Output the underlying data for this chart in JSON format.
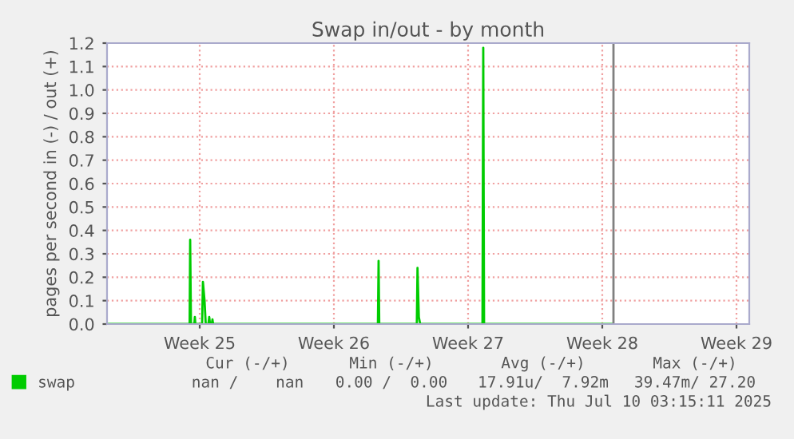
{
  "chart_data": {
    "type": "line",
    "title": "Swap in/out - by month",
    "ylabel": "pages per second in (-) / out (+)",
    "xlim": [
      "2025-06-14T16:00",
      "2025-07-18T04:00"
    ],
    "xticks": [
      {
        "value": "2025-06-19T12:00",
        "label": "Week 25"
      },
      {
        "value": "2025-06-26T12:00",
        "label": "Week 26"
      },
      {
        "value": "2025-07-03T12:00",
        "label": "Week 27"
      },
      {
        "value": "2025-07-10T12:00",
        "label": "Week 28"
      },
      {
        "value": "2025-07-17T12:00",
        "label": "Week 29"
      }
    ],
    "ylim": [
      0,
      1.2
    ],
    "yticks": [
      {
        "value": 0,
        "label": "0.0"
      },
      0.1,
      0.2,
      0.3,
      0.4,
      0.5,
      0.6,
      0.7,
      0.8,
      0.9,
      {
        "value": 1,
        "label": "1.0"
      },
      1.1,
      1.2
    ],
    "grid": true,
    "legend": "bottom",
    "marker": "none",
    "line_style": "solid",
    "series": [
      {
        "name": "swap",
        "color": "#00cc00",
        "x": [
          "2025-06-14T16:00",
          "2025-06-18T23:24",
          "2025-06-19T00:04",
          "2025-06-19T01:05",
          "2025-06-19T05:17",
          "2025-06-19T05:57",
          "2025-06-19T06:37",
          "2025-06-19T15:01",
          "2025-06-19T16:02",
          "2025-06-19T18:03",
          "2025-06-19T19:34",
          "2025-06-19T22:55",
          "2025-06-19T23:56",
          "2025-06-20T00:56",
          "2025-06-20T03:07",
          "2025-06-20T03:58",
          "2025-06-20T04:48",
          "2025-06-28T19:06",
          "2025-06-28T19:57",
          "2025-06-28T20:47",
          "2025-06-30T19:49",
          "2025-06-30T20:40",
          "2025-06-30T22:21",
          "2025-07-01T00:01",
          "2025-07-04T05:59",
          "2025-07-04T06:59",
          "2025-07-04T08:00",
          "2025-07-11T01:26"
        ],
        "values": [
          0,
          0,
          0.36,
          0,
          0,
          0.03,
          0,
          0,
          0.18,
          0.1,
          0,
          0,
          0.03,
          0,
          0,
          0.02,
          0,
          0,
          0.27,
          0,
          0,
          0.24,
          0.03,
          0,
          0,
          1.18,
          0,
          0
        ]
      }
    ],
    "ref_lines": [
      {
        "axis": "x",
        "value": "2025-07-11T02:00",
        "color": "#808080"
      }
    ],
    "annotations": [
      "Cur (-/+)",
      "Min (-/+)",
      "Avg (-/+)",
      "Max (-/+)",
      "nan /    nan",
      "0.00 /  0.00",
      "17.91u/  7.92m",
      "39.47m/ 27.20",
      "Last update: Thu Jul 10 03:15:11 2025"
    ]
  }
}
